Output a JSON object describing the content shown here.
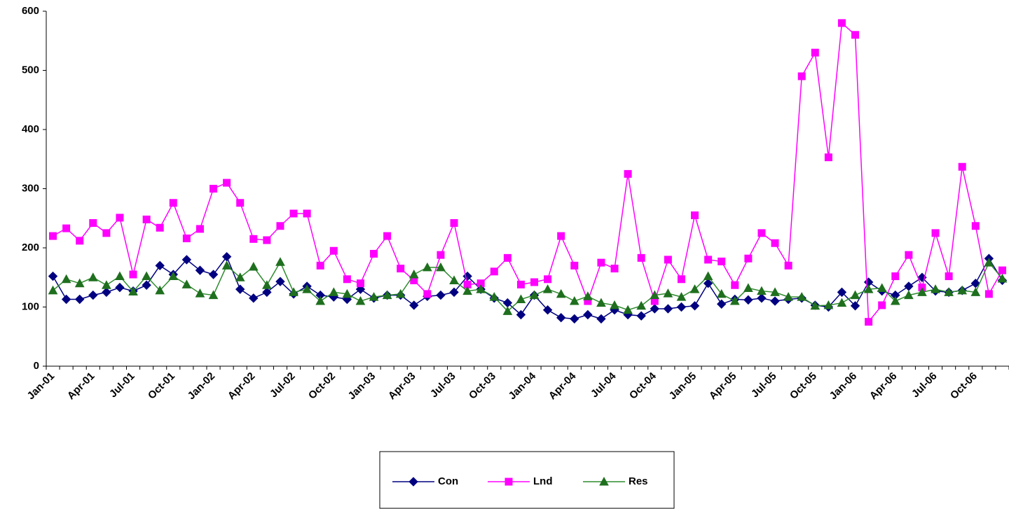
{
  "chart_data": {
    "type": "line",
    "categories": [
      "Jan-01",
      null,
      null,
      "Apr-01",
      null,
      null,
      "Jul-01",
      null,
      null,
      "Oct-01",
      null,
      null,
      "Jan-02",
      null,
      null,
      "Apr-02",
      null,
      null,
      "Jul-02",
      null,
      null,
      "Oct-02",
      null,
      null,
      "Jan-03",
      null,
      null,
      "Apr-03",
      null,
      null,
      "Jul-03",
      null,
      null,
      "Oct-03",
      null,
      null,
      "Jan-04",
      null,
      null,
      "Apr-04",
      null,
      null,
      "Jul-04",
      null,
      null,
      "Oct-04",
      null,
      null,
      "Jan-05",
      null,
      null,
      "Apr-05",
      null,
      null,
      "Jul-05",
      null,
      null,
      "Oct-05",
      null,
      null,
      "Jan-06",
      null,
      null,
      "Apr-06",
      null,
      null,
      "Jul-06",
      null,
      null,
      "Oct-06",
      null,
      null
    ],
    "series": [
      {
        "name": "Con",
        "color": "#000080",
        "marker": "diamond",
        "values": [
          152,
          113,
          113,
          120,
          125,
          133,
          127,
          137,
          170,
          155,
          180,
          162,
          155,
          185,
          130,
          115,
          125,
          143,
          122,
          135,
          120,
          117,
          113,
          130,
          115,
          120,
          120,
          103,
          118,
          120,
          125,
          152,
          130,
          115,
          107,
          87,
          120,
          95,
          82,
          80,
          87,
          80,
          95,
          87,
          85,
          97,
          97,
          100,
          102,
          140,
          105,
          113,
          112,
          115,
          110,
          113,
          115,
          103,
          100,
          125,
          102,
          142,
          127,
          120,
          135,
          150,
          127,
          125,
          128,
          140,
          182,
          145
        ]
      },
      {
        "name": "Lnd",
        "color": "#ff00ff",
        "marker": "square",
        "values": [
          220,
          233,
          212,
          242,
          225,
          251,
          155,
          248,
          234,
          276,
          216,
          232,
          300,
          310,
          276,
          215,
          213,
          237,
          258,
          258,
          170,
          195,
          147,
          140,
          190,
          220,
          165,
          145,
          122,
          188,
          242,
          138,
          140,
          160,
          183,
          138,
          142,
          147,
          220,
          170,
          110,
          175,
          165,
          325,
          183,
          110,
          180,
          147,
          255,
          180,
          177,
          137,
          182,
          225,
          208,
          170,
          490,
          530,
          353,
          580,
          560,
          75,
          103,
          152,
          188,
          133,
          225,
          152,
          337,
          237,
          122,
          162
        ]
      },
      {
        "name": "Res",
        "color": "#2e8b2e",
        "marker": "triangle",
        "values": [
          128,
          147,
          140,
          150,
          137,
          152,
          126,
          152,
          128,
          152,
          138,
          123,
          120,
          170,
          150,
          168,
          137,
          176,
          125,
          130,
          110,
          125,
          122,
          110,
          117,
          120,
          122,
          155,
          167,
          167,
          145,
          127,
          130,
          117,
          93,
          113,
          120,
          130,
          122,
          110,
          118,
          107,
          103,
          95,
          102,
          120,
          123,
          117,
          130,
          152,
          122,
          110,
          132,
          127,
          125,
          117,
          117,
          102,
          103,
          107,
          120,
          130,
          132,
          110,
          120,
          125,
          130,
          125,
          128,
          125,
          175,
          148
        ]
      }
    ],
    "ylim": [
      0,
      600
    ],
    "yticks": [
      0,
      100,
      200,
      300,
      400,
      500,
      600
    ]
  }
}
